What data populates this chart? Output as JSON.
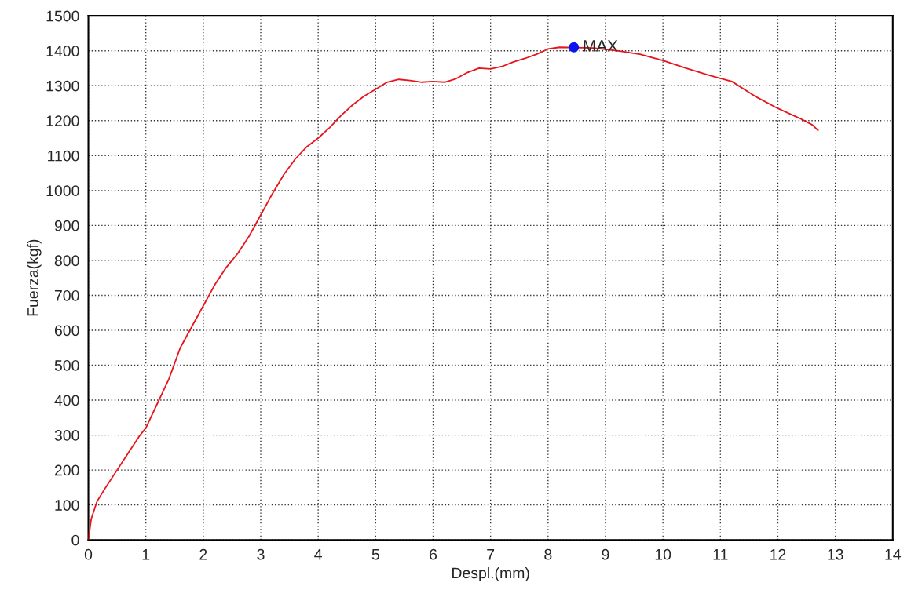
{
  "chart_data": {
    "type": "line",
    "xlabel": "Despl.(mm)",
    "ylabel": "Fuerza(kgf)",
    "xlim": [
      0,
      14
    ],
    "ylim": [
      0,
      1500
    ],
    "xticks": [
      0,
      1,
      2,
      3,
      4,
      5,
      6,
      7,
      8,
      9,
      10,
      11,
      12,
      13,
      14
    ],
    "yticks": [
      0,
      100,
      200,
      300,
      400,
      500,
      600,
      700,
      800,
      900,
      1000,
      1100,
      1200,
      1300,
      1400,
      1500
    ],
    "grid": true,
    "marker": "none",
    "line_style": "solid",
    "series": [
      {
        "color": "#e8141c",
        "x": [
          0,
          0.05,
          0.15,
          0.3,
          0.5,
          0.7,
          0.9,
          1.0,
          1.2,
          1.4,
          1.6,
          1.8,
          2.0,
          2.2,
          2.4,
          2.6,
          2.8,
          3.0,
          3.2,
          3.4,
          3.6,
          3.8,
          4.0,
          4.2,
          4.4,
          4.6,
          4.8,
          5.0,
          5.2,
          5.4,
          5.6,
          5.8,
          6.0,
          6.2,
          6.4,
          6.6,
          6.8,
          7.0,
          7.2,
          7.4,
          7.6,
          7.8,
          8.0,
          8.2,
          8.8,
          9.2,
          9.6,
          10.0,
          10.4,
          10.8,
          11.2,
          11.6,
          12.0,
          12.4,
          12.6,
          12.7
        ],
        "values": [
          0,
          60,
          110,
          150,
          200,
          250,
          300,
          320,
          390,
          460,
          550,
          610,
          670,
          730,
          780,
          820,
          870,
          930,
          990,
          1045,
          1090,
          1125,
          1150,
          1180,
          1215,
          1245,
          1270,
          1290,
          1310,
          1318,
          1315,
          1310,
          1312,
          1310,
          1320,
          1338,
          1350,
          1348,
          1355,
          1368,
          1378,
          1390,
          1405,
          1410,
          1408,
          1400,
          1390,
          1372,
          1350,
          1330,
          1312,
          1270,
          1235,
          1205,
          1188,
          1172
        ]
      },
      {
        "type": "scatter",
        "color": "#0a14f0",
        "marker": "circle",
        "x": [
          8.45
        ],
        "values": [
          1410
        ]
      }
    ],
    "annotations": [
      {
        "text": "MAX",
        "x": 8.45,
        "y": 1410
      }
    ]
  }
}
